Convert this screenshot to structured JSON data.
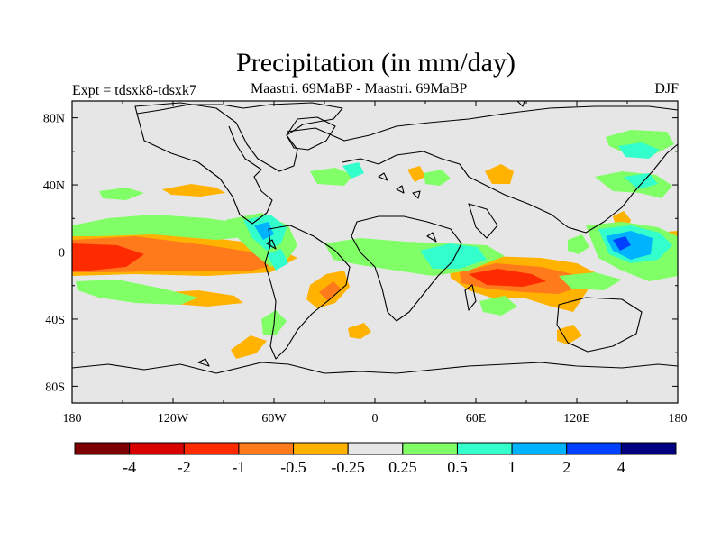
{
  "title": "Precipitation (in mm/day)",
  "left_label": "Expt = tdsxk8-tdsxk7",
  "center_label": "Maastri.  69MaBP - Maastri.  69MaBP",
  "season": "DJF",
  "lat_ticks": [
    "80N",
    "40N",
    "0",
    "40S",
    "80S"
  ],
  "lon_ticks": [
    "180",
    "120W",
    "60W",
    "0",
    "60E",
    "120E",
    "180"
  ],
  "colorbar": {
    "colors": [
      "#7f0000",
      "#d90000",
      "#ff2b00",
      "#ff7a1a",
      "#ffb300",
      "#e6e6e6",
      "#80ff66",
      "#33ffcc",
      "#00b3ff",
      "#0040ff",
      "#000080"
    ],
    "labels": [
      "-4",
      "-2",
      "-1",
      "-0.5",
      "-0.25",
      "0.25",
      "0.5",
      "1",
      "2",
      "4"
    ]
  },
  "map_colors": {
    "background": "#e6e6e6",
    "orange": "#ffb300",
    "deep_orange": "#ff7a1a",
    "red": "#ff2b00",
    "green": "#80ff66",
    "cyan": "#33ffcc",
    "light_blue": "#00b3ff",
    "blue": "#0040ff"
  }
}
